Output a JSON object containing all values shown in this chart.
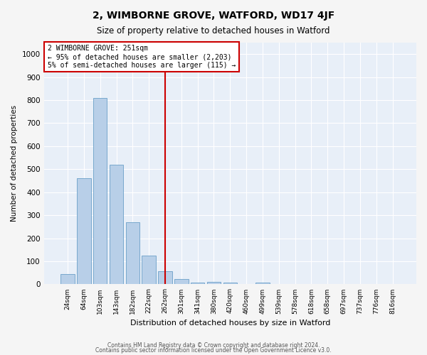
{
  "title": "2, WIMBORNE GROVE, WATFORD, WD17 4JF",
  "subtitle": "Size of property relative to detached houses in Watford",
  "xlabel": "Distribution of detached houses by size in Watford",
  "ylabel": "Number of detached properties",
  "categories": [
    "24sqm",
    "64sqm",
    "103sqm",
    "143sqm",
    "182sqm",
    "222sqm",
    "262sqm",
    "301sqm",
    "341sqm",
    "380sqm",
    "420sqm",
    "460sqm",
    "499sqm",
    "539sqm",
    "578sqm",
    "618sqm",
    "658sqm",
    "697sqm",
    "737sqm",
    "776sqm",
    "816sqm"
  ],
  "values": [
    45,
    460,
    810,
    520,
    270,
    125,
    58,
    22,
    7,
    12,
    7,
    0,
    7,
    0,
    0,
    0,
    0,
    0,
    0,
    0,
    0
  ],
  "bar_color": "#b8cfe8",
  "bar_edge_color": "#6a9fc8",
  "red_line_index": 6,
  "annotation_lines": [
    "2 WIMBORNE GROVE: 251sqm",
    "← 95% of detached houses are smaller (2,203)",
    "5% of semi-detached houses are larger (115) →"
  ],
  "annotation_box_color": "#ffffff",
  "annotation_box_edge": "#cc0000",
  "red_line_color": "#cc0000",
  "ylim": [
    0,
    1050
  ],
  "yticks": [
    0,
    100,
    200,
    300,
    400,
    500,
    600,
    700,
    800,
    900,
    1000
  ],
  "background_color": "#e8eff8",
  "grid_color": "#ffffff",
  "fig_bg_color": "#f5f5f5",
  "footer1": "Contains HM Land Registry data © Crown copyright and database right 2024.",
  "footer2": "Contains public sector information licensed under the Open Government Licence v3.0."
}
